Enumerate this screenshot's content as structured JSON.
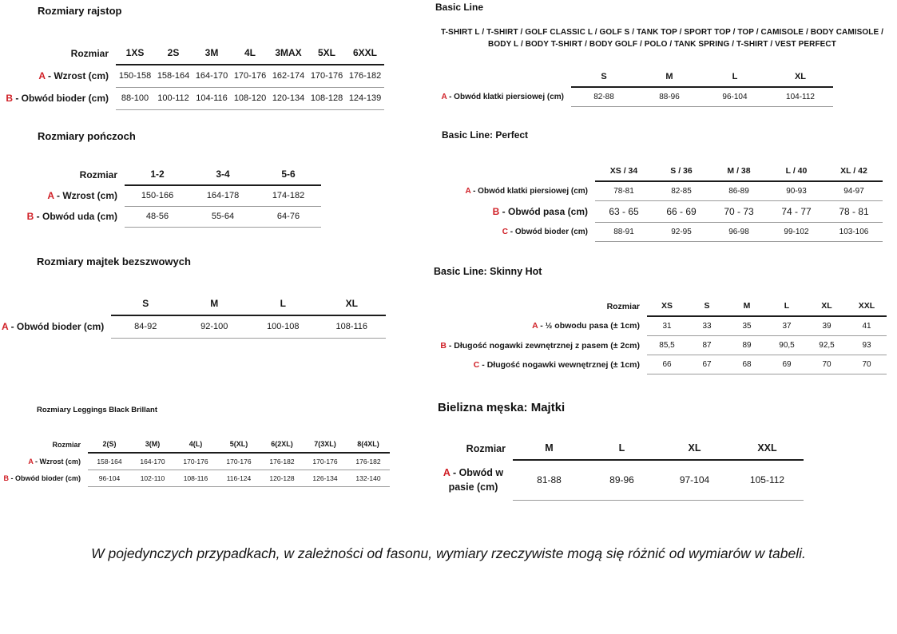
{
  "accent_color": "#d02027",
  "left": {
    "rajstopy": {
      "title": "Rozmiary rajstop",
      "size_header": "Rozmiar",
      "columns": [
        "1XS",
        "2S",
        "3M",
        "4L",
        "3MAX",
        "5XL",
        "6XXL"
      ],
      "rows": [
        {
          "letter": "A",
          "label": "- Wzrost (cm)",
          "values": [
            "150-158",
            "158-164",
            "164-170",
            "170-176",
            "162-174",
            "170-176",
            "176-182"
          ]
        },
        {
          "letter": "B",
          "label": "- Obwód bioder (cm)",
          "values": [
            "88-100",
            "100-112",
            "104-116",
            "108-120",
            "120-134",
            "108-128",
            "124-139"
          ]
        }
      ]
    },
    "ponczochy": {
      "title": "Rozmiary pończoch",
      "size_header": "Rozmiar",
      "columns": [
        "1-2",
        "3-4",
        "5-6"
      ],
      "rows": [
        {
          "letter": "A",
          "label": "- Wzrost (cm)",
          "values": [
            "150-166",
            "164-178",
            "174-182"
          ]
        },
        {
          "letter": "B",
          "label": "- Obwód uda (cm)",
          "values": [
            "48-56",
            "55-64",
            "64-76"
          ]
        }
      ]
    },
    "majtki_bezszwowe": {
      "title": "Rozmiary majtek bezszwowych",
      "columns": [
        "S",
        "M",
        "L",
        "XL"
      ],
      "rows": [
        {
          "letter": "A",
          "label": "- Obwód bioder (cm)",
          "values": [
            "84-92",
            "92-100",
            "100-108",
            "108-116"
          ]
        }
      ]
    },
    "leggings": {
      "title": "Rozmiary Leggings Black Brillant",
      "size_header": "Rozmiar",
      "columns": [
        "2(S)",
        "3(M)",
        "4(L)",
        "5(XL)",
        "6(2XL)",
        "7(3XL)",
        "8(4XL)"
      ],
      "rows": [
        {
          "letter": "A",
          "label": "- Wzrost (cm)",
          "values": [
            "158-164",
            "164-170",
            "170-176",
            "170-176",
            "176-182",
            "170-176",
            "176-182"
          ]
        },
        {
          "letter": "B",
          "label": "- Obwód bioder (cm)",
          "values": [
            "96-104",
            "102-110",
            "108-116",
            "116-124",
            "120-128",
            "126-134",
            "132-140"
          ]
        }
      ]
    }
  },
  "right": {
    "basic_line": {
      "title": "Basic Line",
      "products": "T-SHIRT L / T-SHIRT / GOLF CLASSIC L / GOLF S / TANK TOP / SPORT TOP / TOP / CAMISOLE / BODY CAMISOLE / BODY L / BODY T-SHIRT / BODY GOLF / POLO / TANK SPRING / T-SHIRT / VEST PERFECT",
      "columns": [
        "S",
        "M",
        "L",
        "XL"
      ],
      "rows": [
        {
          "letter": "A",
          "label": "- Obwód klatki piersiowej (cm)",
          "values": [
            "82-88",
            "88-96",
            "96-104",
            "104-112"
          ]
        }
      ]
    },
    "perfect": {
      "title": "Basic Line: Perfect",
      "columns": [
        "XS / 34",
        "S / 36",
        "M / 38",
        "L / 40",
        "XL / 42"
      ],
      "rows": [
        {
          "letter": "A",
          "label": "- Obwód klatki piersiowej (cm)",
          "values": [
            "78-81",
            "82-85",
            "86-89",
            "90-93",
            "94-97"
          ]
        },
        {
          "letter": "B",
          "label": "- Obwód pasa (cm)",
          "values": [
            "63 - 65",
            "66 - 69",
            "70 - 73",
            "74 - 77",
            "78 - 81"
          ]
        },
        {
          "letter": "C",
          "label": "- Obwód bioder (cm)",
          "values": [
            "88-91",
            "92-95",
            "96-98",
            "99-102",
            "103-106"
          ]
        }
      ]
    },
    "skinny_hot": {
      "title": "Basic Line: Skinny Hot",
      "size_header": "Rozmiar",
      "columns": [
        "XS",
        "S",
        "M",
        "L",
        "XL",
        "XXL"
      ],
      "rows": [
        {
          "letter": "A",
          "label": "- ½ obwodu pasa (± 1cm)",
          "values": [
            "31",
            "33",
            "35",
            "37",
            "39",
            "41"
          ]
        },
        {
          "letter": "B",
          "label": "- Długość nogawki zewnętrznej z pasem (± 2cm)",
          "values": [
            "85,5",
            "87",
            "89",
            "90,5",
            "92,5",
            "93"
          ]
        },
        {
          "letter": "C",
          "label": "- Długość nogawki wewnętrznej (± 1cm)",
          "values": [
            "66",
            "67",
            "68",
            "69",
            "70",
            "70"
          ]
        }
      ]
    },
    "meska": {
      "title": "Bielizna męska: Majtki",
      "size_header": "Rozmiar",
      "columns": [
        "M",
        "L",
        "XL",
        "XXL"
      ],
      "rows": [
        {
          "letter": "A",
          "label": "- Obwód w pasie (cm)",
          "values": [
            "81-88",
            "89-96",
            "97-104",
            "105-112"
          ]
        }
      ]
    }
  },
  "footer": {
    "note": "W pojedynczych przypadkach, w zależności od fasonu, wymiary rzeczywiste mogą się różnić od wymiarów w tabeli."
  }
}
